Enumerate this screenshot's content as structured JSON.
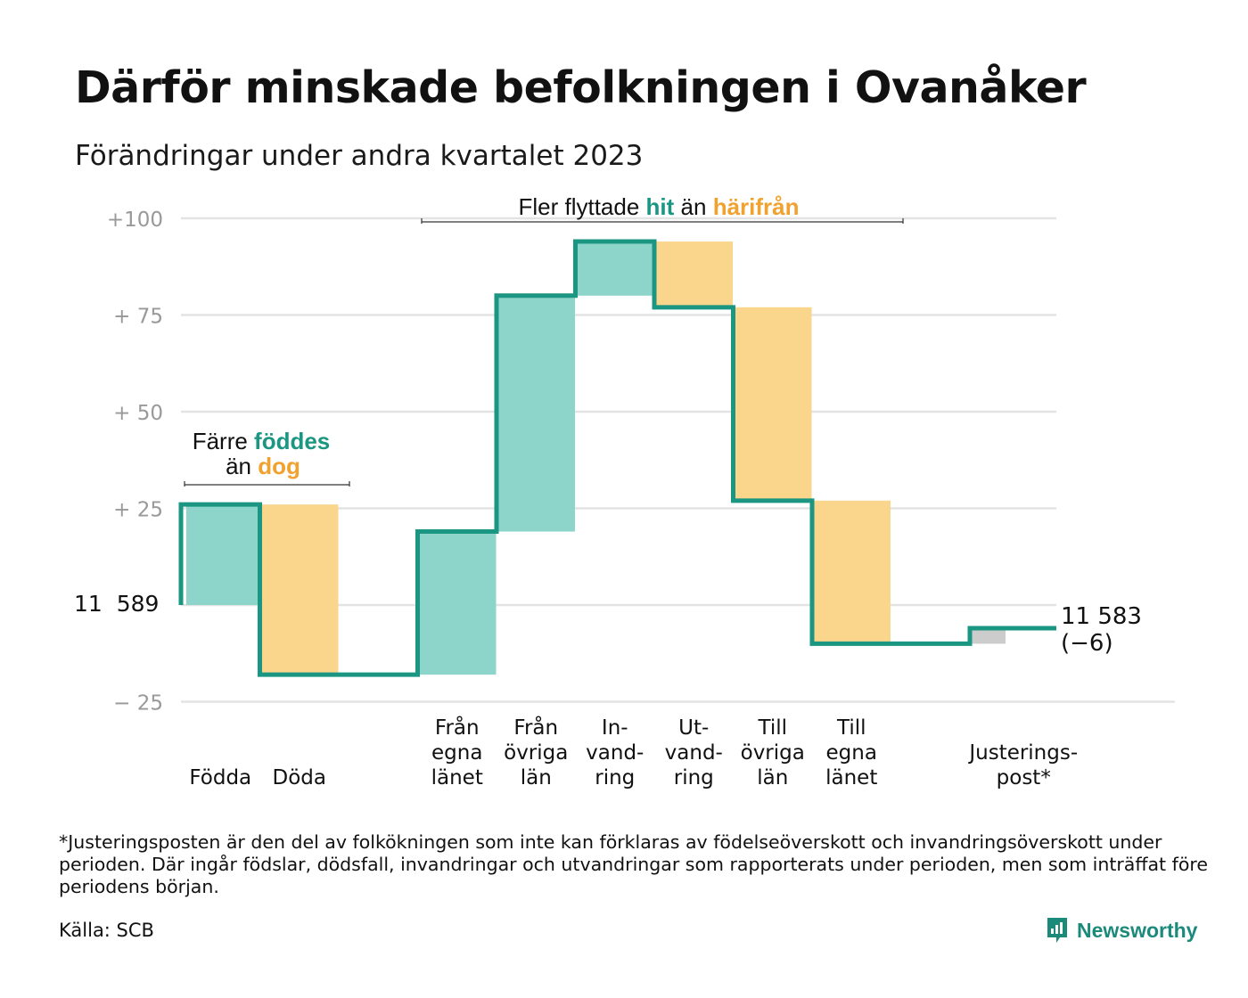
{
  "title": "Därför minskade befolkningen i Ovanåker",
  "subtitle": "Förändringar under andra kvartalet 2023",
  "footnote": "*Justeringsposten är den del av folkökningen som inte kan förklaras av födelseöverskott och invandringsöverskott under perioden. Där ingår födslar, dödsfall, invandringar och utvandringar som rapporterats under perioden, men som inträffat före periodens början.",
  "source": "Källa: SCB",
  "brand": "Newsworthy",
  "colors": {
    "line": "#1a9682",
    "increase": "#8dd5cb",
    "decrease": "#fad68d",
    "adjustment": "#cccccc",
    "hit": "#1a9682",
    "harifran": "#f0a12e",
    "grid": "#e3e3e3",
    "tick": "#999999"
  },
  "annotations": {
    "births_deaths": {
      "line1": "Färre ",
      "line1_highlight": "föddes",
      "line2": "än ",
      "line2_highlight": "dog"
    },
    "migration": {
      "prefix": "Fler flyttade ",
      "hit": "hit",
      "middle": " än ",
      "harifran": "härifrån"
    }
  },
  "chart_data": {
    "type": "waterfall",
    "title": "Därför minskade befolkningen i Ovanåker",
    "subtitle": "Förändringar under andra kvartalet 2023",
    "start_value": 11589,
    "start_label": "11  589",
    "end_value": 11583,
    "end_label": "11 583",
    "end_change_label": "(−6)",
    "ylim": [
      -25,
      100
    ],
    "yticks": [
      {
        "value": 100,
        "label": "+100"
      },
      {
        "value": 75,
        "label": "+  75"
      },
      {
        "value": 50,
        "label": "+  50"
      },
      {
        "value": 25,
        "label": "+  25"
      },
      {
        "value": -25,
        "label": "−  25"
      }
    ],
    "grid": true,
    "steps": [
      {
        "label": [
          "Födda"
        ],
        "change": 26,
        "kind": "increase"
      },
      {
        "label": [
          "Döda"
        ],
        "change": -44,
        "kind": "decrease"
      },
      {
        "label": [],
        "change": 0,
        "kind": "gap"
      },
      {
        "label": [
          "Från",
          "egna",
          "länet"
        ],
        "change": 37,
        "kind": "increase"
      },
      {
        "label": [
          "Från",
          "övriga",
          "län"
        ],
        "change": 61,
        "kind": "increase"
      },
      {
        "label": [
          "In-",
          "vand-",
          "ring"
        ],
        "change": 14,
        "kind": "increase"
      },
      {
        "label": [
          "Ut-",
          "vand-",
          "ring"
        ],
        "change": -17,
        "kind": "decrease"
      },
      {
        "label": [
          "Till",
          "övriga",
          "län"
        ],
        "change": -50,
        "kind": "decrease"
      },
      {
        "label": [
          "Till",
          "egna",
          "länet"
        ],
        "change": -37,
        "kind": "decrease"
      },
      {
        "label": [],
        "change": 0,
        "kind": "gap"
      },
      {
        "label": [
          "Justerings-",
          "post*"
        ],
        "change": 4,
        "kind": "adjustment"
      }
    ]
  }
}
